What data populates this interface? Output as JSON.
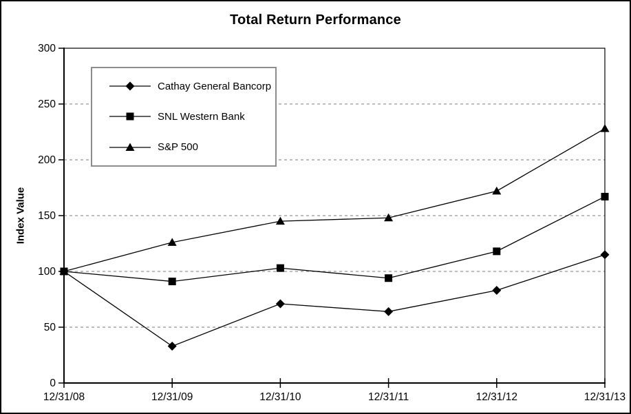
{
  "title": "Total Return Performance",
  "chart_data": {
    "type": "line",
    "title": "Total Return Performance",
    "xlabel": "",
    "ylabel": "Index Value",
    "categories": [
      "12/31/08",
      "12/31/09",
      "12/31/10",
      "12/31/11",
      "12/31/12",
      "12/31/13"
    ],
    "series": [
      {
        "name": "Cathay General Bancorp",
        "marker": "diamond",
        "values": [
          100,
          33,
          71,
          64,
          83,
          115
        ]
      },
      {
        "name": "SNL Western Bank",
        "marker": "square",
        "values": [
          100,
          91,
          103,
          94,
          118,
          167
        ]
      },
      {
        "name": "S&P 500",
        "marker": "triangle",
        "values": [
          100,
          126,
          145,
          148,
          172,
          228
        ]
      }
    ],
    "ylim": [
      0,
      300
    ],
    "yticks": [
      0,
      50,
      100,
      150,
      200,
      250,
      300
    ],
    "grid": true,
    "legend_position": "upper-left-inside"
  },
  "colors": {
    "series": "#000000",
    "grid": "#a6a6a6",
    "legend_border": "#8c8c8c",
    "background": "#ffffff",
    "text": "#000000"
  }
}
